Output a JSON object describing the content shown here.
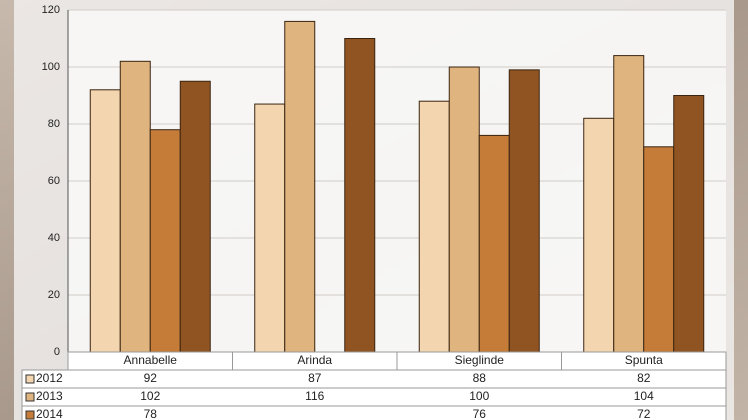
{
  "chart_data": {
    "type": "bar",
    "categories": [
      "Annabelle",
      "Arinda",
      "Sieglinde",
      "Spunta"
    ],
    "series": [
      {
        "name": "2012",
        "color": "#f3d6b0",
        "values": [
          92,
          87,
          88,
          82
        ]
      },
      {
        "name": "2013",
        "color": "#dfb47f",
        "values": [
          102,
          116,
          100,
          104
        ]
      },
      {
        "name": "2014",
        "color": "#c47c38",
        "values": [
          78,
          null,
          76,
          72
        ]
      },
      {
        "color": "#8f5421",
        "values": [
          95,
          110,
          99,
          90
        ]
      }
    ],
    "ylim": [
      0,
      120
    ],
    "yticks": [
      0,
      20,
      40,
      60,
      80,
      100,
      120
    ],
    "grid": true
  }
}
